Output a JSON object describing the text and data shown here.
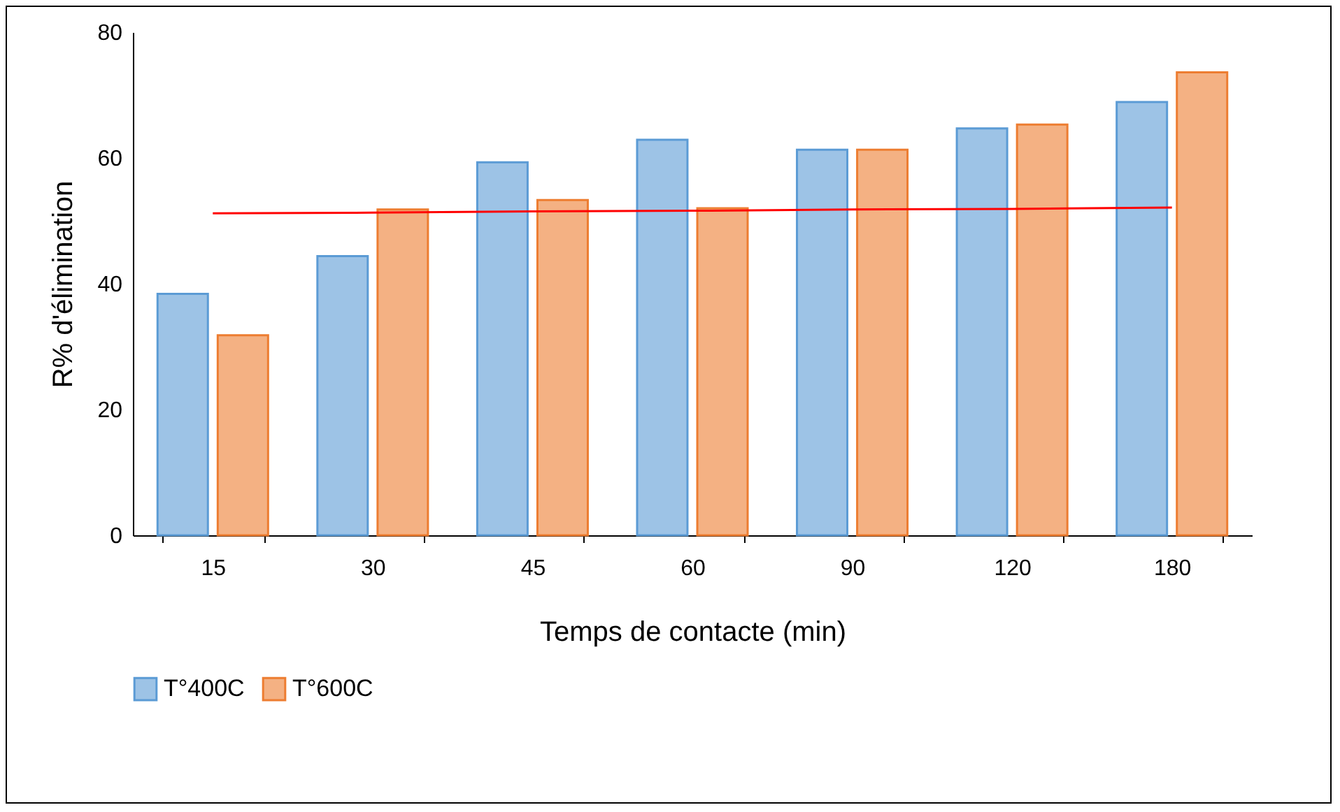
{
  "chart_data": {
    "type": "bar",
    "xlabel": "Temps de contacte (min)",
    "ylabel": "R% d'élimination",
    "categories": [
      "15",
      "30",
      "45",
      "60",
      "90",
      "120",
      "180"
    ],
    "series": [
      {
        "name": "T°400C",
        "color": "#9dc3e6",
        "values": [
          38.4,
          44.4,
          59.3,
          62.9,
          61.3,
          64.7,
          68.9
        ]
      },
      {
        "name": "T°600C",
        "color": "#f4b183",
        "values": [
          31.8,
          51.8,
          53.3,
          52,
          61.3,
          65.3,
          73.6
        ]
      },
      {
        "type": "line",
        "color": "#ff0000",
        "values": [
          51.2,
          51.3,
          51.5,
          51.6,
          51.8,
          51.9,
          52.1
        ]
      }
    ],
    "ylim": [
      0,
      80
    ],
    "yticks": [
      0,
      20,
      40,
      60,
      80
    ],
    "grid": false,
    "legend": "bottom"
  }
}
